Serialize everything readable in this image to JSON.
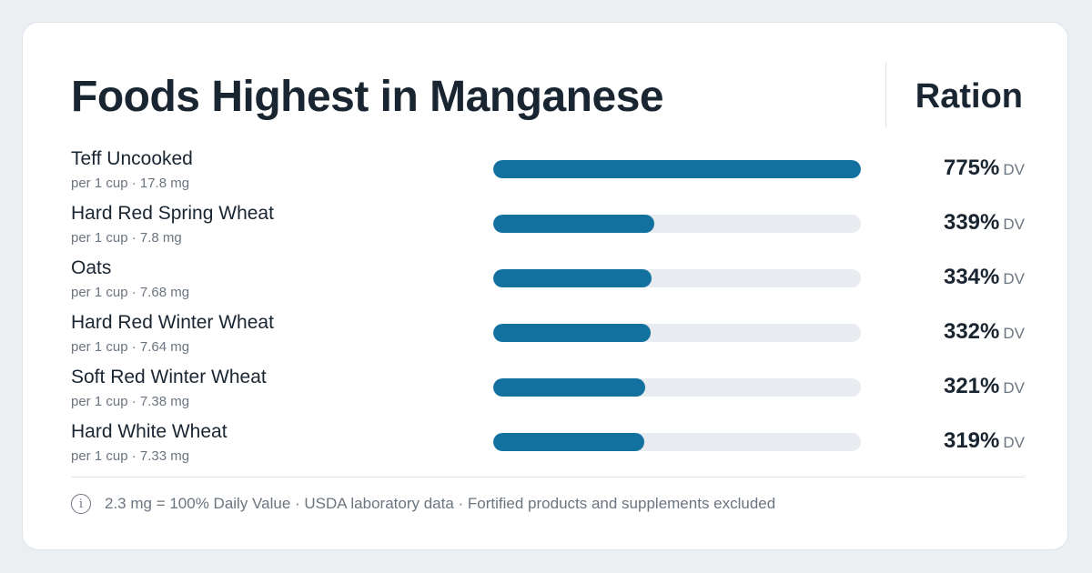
{
  "header": {
    "title": "Foods Highest in Manganese",
    "brand": "Ration"
  },
  "colors": {
    "bar_fill": "#13719f",
    "bar_track": "#e8ecf0",
    "text_primary": "#1a2532",
    "text_secondary": "#6b7580"
  },
  "dv_suffix": "DV",
  "chart_data": {
    "type": "bar",
    "orientation": "horizontal",
    "unit": "% DV",
    "xlim": [
      0,
      775
    ],
    "categories": [
      "Teff Uncooked",
      "Hard Red Spring Wheat",
      "Oats",
      "Hard Red Winter Wheat",
      "Soft Red Winter Wheat",
      "Hard White Wheat"
    ],
    "values": [
      775,
      339,
      334,
      332,
      321,
      319
    ],
    "value_labels": [
      "775%",
      "339%",
      "334%",
      "332%",
      "321%",
      "319%"
    ],
    "servings": [
      "per 1 cup · 17.8 mg",
      "per 1 cup · 7.8 mg",
      "per 1 cup · 7.68 mg",
      "per 1 cup · 7.64 mg",
      "per 1 cup · 7.38 mg",
      "per 1 cup · 7.33 mg"
    ]
  },
  "footer": {
    "icon": "info-icon",
    "note": "2.3 mg = 100% Daily Value · USDA laboratory data · Fortified products and supplements excluded"
  }
}
